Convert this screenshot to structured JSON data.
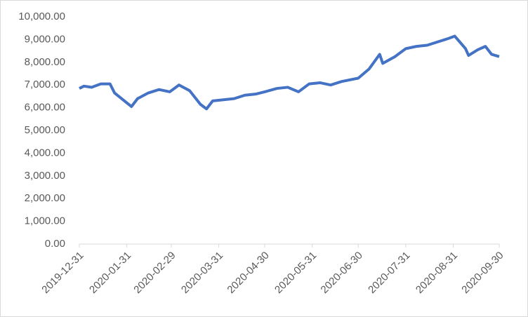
{
  "chart_data": {
    "type": "line",
    "x": [
      "2019-12-31",
      "2020-01-03",
      "2020-01-08",
      "2020-01-14",
      "2020-01-20",
      "2020-01-23",
      "2020-02-03",
      "2020-02-07",
      "2020-02-14",
      "2020-02-21",
      "2020-02-28",
      "2020-03-05",
      "2020-03-12",
      "2020-03-19",
      "2020-03-23",
      "2020-03-27",
      "2020-04-03",
      "2020-04-10",
      "2020-04-17",
      "2020-04-24",
      "2020-04-30",
      "2020-05-08",
      "2020-05-15",
      "2020-05-22",
      "2020-05-29",
      "2020-06-05",
      "2020-06-12",
      "2020-06-19",
      "2020-06-30",
      "2020-07-07",
      "2020-07-14",
      "2020-07-16",
      "2020-07-24",
      "2020-07-31",
      "2020-08-07",
      "2020-08-14",
      "2020-08-21",
      "2020-08-28",
      "2020-09-01",
      "2020-09-08",
      "2020-09-10",
      "2020-09-16",
      "2020-09-21",
      "2020-09-25",
      "2020-09-30"
    ],
    "series": [
      {
        "color": "#4472c4",
        "values": [
          6850,
          6950,
          6900,
          7050,
          7050,
          6650,
          6050,
          6400,
          6650,
          6800,
          6700,
          7000,
          6750,
          6150,
          5950,
          6300,
          6350,
          6400,
          6550,
          6600,
          6700,
          6850,
          6900,
          6700,
          7050,
          7100,
          7000,
          7150,
          7300,
          7700,
          8350,
          7950,
          8250,
          8600,
          8700,
          8750,
          8900,
          9050,
          9150,
          8600,
          8300,
          8550,
          8700,
          8350,
          8250
        ]
      }
    ],
    "xlim": [
      "2019-12-31",
      "2020-09-30"
    ],
    "xticks": [
      "2019-12-31",
      "2020-01-31",
      "2020-02-29",
      "2020-03-31",
      "2020-04-30",
      "2020-05-31",
      "2020-06-30",
      "2020-07-31",
      "2020-08-31",
      "2020-09-30"
    ],
    "ylim": [
      0,
      10000
    ],
    "yticks": [
      {
        "value": 0,
        "label": "0.00"
      },
      {
        "value": 1000,
        "label": "1,000.00"
      },
      {
        "value": 2000,
        "label": "2,000.00"
      },
      {
        "value": 3000,
        "label": "3,000.00"
      },
      {
        "value": 4000,
        "label": "4,000.00"
      },
      {
        "value": 5000,
        "label": "5,000.00"
      },
      {
        "value": 6000,
        "label": "6,000.00"
      },
      {
        "value": 7000,
        "label": "7,000.00"
      },
      {
        "value": 8000,
        "label": "8,000.00"
      },
      {
        "value": 9000,
        "label": "9,000.00"
      },
      {
        "value": 10000,
        "label": "10,000.00"
      }
    ],
    "grid": false
  }
}
